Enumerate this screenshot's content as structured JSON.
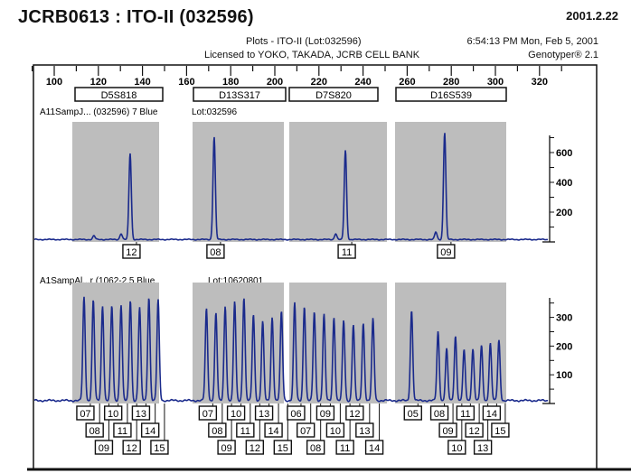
{
  "title": "JCRB0613 : ITO-II (032596)",
  "date": "2001.2.22",
  "header": {
    "plots_line": "Plots  -  ITO-II  (Lot:032596)",
    "license_line": "Licensed to YOKO, TAKADA, JCRB CELL BANK",
    "timestamp": "6:54:13 PM Mon, Feb 5, 2001",
    "software": "Genotyper® 2.1"
  },
  "colors": {
    "trace": "#1a2a8c",
    "bin": "#bdbdbd",
    "frame": "#111111"
  },
  "chart_data": {
    "type": "line",
    "xlabel": "",
    "ylabel": "",
    "xlim": [
      100,
      320
    ],
    "x_ticks": [
      100,
      120,
      140,
      160,
      180,
      200,
      220,
      240,
      260,
      280,
      300,
      320
    ],
    "grid": false,
    "markers": [
      {
        "name": "D5S818",
        "bin": [
          108,
          148
        ]
      },
      {
        "name": "D13S317",
        "bin": [
          164,
          205
        ]
      },
      {
        "name": "D7S820",
        "bin": [
          207,
          251
        ]
      },
      {
        "name": "D16S539",
        "bin": [
          255,
          305
        ]
      }
    ],
    "panels": [
      {
        "label": "A11SampJ... (032596)  7 Blue",
        "lot": "Lot:032596",
        "ylim": [
          0,
          720
        ],
        "y_ticks": [
          200,
          400,
          600
        ],
        "peaks": [
          {
            "x": 134.4,
            "y": 580,
            "allele": "12"
          },
          {
            "x": 130.3,
            "y": 40,
            "allele": ""
          },
          {
            "x": 172.5,
            "y": 690,
            "allele": "08"
          },
          {
            "x": 232.0,
            "y": 600,
            "allele": "11"
          },
          {
            "x": 227.6,
            "y": 40,
            "allele": ""
          },
          {
            "x": 277.0,
            "y": 720,
            "allele": "09"
          },
          {
            "x": 273.0,
            "y": 50,
            "allele": ""
          },
          {
            "x": 118.0,
            "y": 25,
            "allele": ""
          }
        ]
      },
      {
        "label": "A1SampAl...r (1062-2   5  Blue",
        "lot": "Lot:10620801",
        "ylim": [
          0,
          370
        ],
        "y_ticks": [
          100,
          200,
          300
        ],
        "ladders": [
          {
            "marker": "D5S818",
            "alleles": [
              "07",
              "08",
              "09",
              "10",
              "11",
              "12",
              "13",
              "14",
              "15"
            ],
            "x": [
              113.5,
              117.7,
              121.9,
              126.1,
              130.3,
              134.5,
              138.7,
              142.9,
              147.1
            ],
            "y": [
              360,
              350,
              330,
              330,
              335,
              350,
              325,
              360,
              350
            ]
          },
          {
            "marker": "D13S317",
            "alleles": [
              "07",
              "08",
              "09",
              "10",
              "11",
              "12",
              "13",
              "14",
              "15"
            ],
            "x": [
              169.0,
              173.3,
              177.5,
              181.8,
              186.0,
              190.3,
              194.5,
              198.8,
              203.0
            ],
            "y": [
              320,
              305,
              330,
              345,
              360,
              300,
              275,
              290,
              310
            ]
          },
          {
            "marker": "D7S820",
            "alleles": [
              "06",
              "07",
              "08",
              "09",
              "10",
              "11",
              "12",
              "13",
              "14"
            ],
            "x": [
              209.0,
              213.4,
              217.9,
              222.3,
              226.8,
              231.2,
              235.6,
              240.1,
              244.5
            ],
            "y": [
              340,
              330,
              310,
              300,
              290,
              280,
              265,
              270,
              285
            ]
          },
          {
            "marker": "D16S539",
            "alleles": [
              "05",
              "08",
              "09",
              "10",
              "11",
              "12",
              "13",
              "14",
              "15"
            ],
            "x": [
              262.0,
              274.0,
              277.9,
              281.9,
              285.8,
              289.8,
              293.7,
              297.7,
              301.6
            ],
            "y": [
              315,
              240,
              180,
              225,
              175,
              180,
              190,
              200,
              210
            ]
          }
        ]
      }
    ]
  }
}
